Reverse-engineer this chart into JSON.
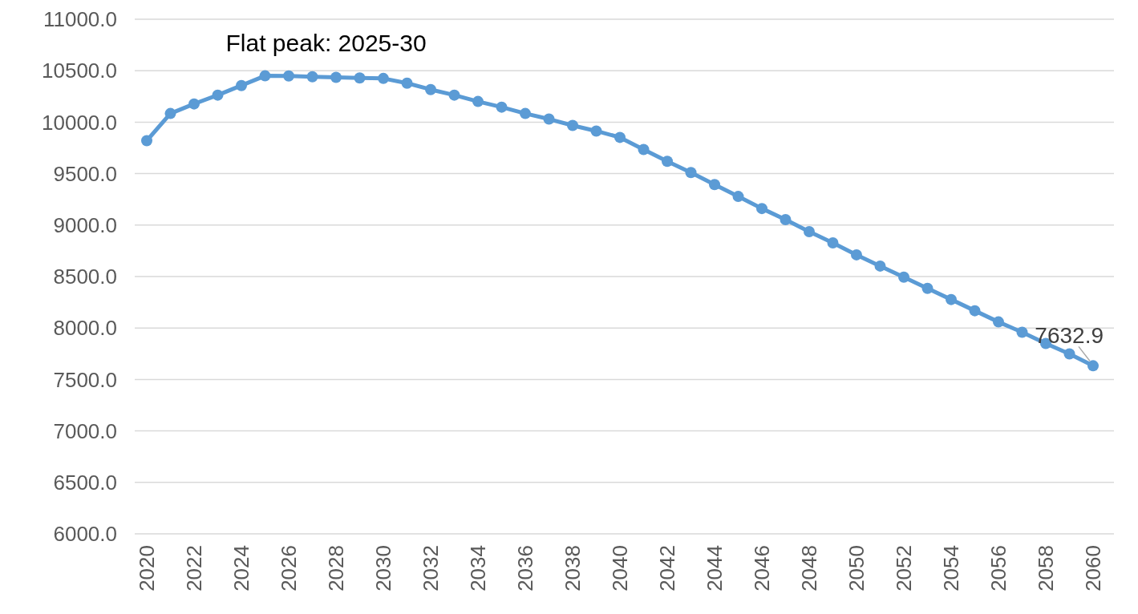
{
  "chart_data": {
    "type": "line",
    "categories": [
      "2020",
      null,
      "2022",
      null,
      "2024",
      null,
      "2026",
      null,
      "2028",
      null,
      "2030",
      null,
      "2032",
      null,
      "2034",
      null,
      "2036",
      null,
      "2038",
      null,
      "2040",
      null,
      "2042",
      null,
      "2044",
      null,
      "2046",
      null,
      "2048",
      null,
      "2050",
      null,
      "2052",
      null,
      "2054",
      null,
      "2056",
      null,
      "2058",
      null,
      "2060"
    ],
    "series": [
      {
        "color": "#5b9bd5",
        "values": [
          9820,
          10084,
          10177,
          10263,
          10356,
          10450,
          10449,
          10441,
          10435,
          10430,
          10425,
          10379,
          10317,
          10263,
          10201,
          10146,
          10084,
          10030,
          9968,
          9914,
          9852,
          9735,
          9619,
          9510,
          9394,
          9278,
          9161,
          9053,
          8936,
          8827,
          8711,
          8602,
          8494,
          8385,
          8277,
          8168,
          8059,
          7959,
          7850,
          7749,
          7632.9
        ],
        "value_labels": [
          null,
          null,
          null,
          null,
          null,
          null,
          null,
          null,
          null,
          null,
          null,
          null,
          null,
          null,
          null,
          null,
          null,
          null,
          null,
          null,
          null,
          null,
          null,
          null,
          null,
          null,
          null,
          null,
          null,
          null,
          null,
          null,
          null,
          null,
          null,
          null,
          null,
          null,
          null,
          null,
          "7632.9"
        ]
      }
    ],
    "ylim": [
      6000,
      11000
    ],
    "yticks": [
      {
        "value": 6000,
        "label": "6000.0"
      },
      {
        "value": 6500,
        "label": "6500.0"
      },
      {
        "value": 7000,
        "label": "7000.0"
      },
      {
        "value": 7500,
        "label": "7500.0"
      },
      {
        "value": 8000,
        "label": "8000.0"
      },
      {
        "value": 8500,
        "label": "8500.0"
      },
      {
        "value": 9000,
        "label": "9000.0"
      },
      {
        "value": 9500,
        "label": "9500.0"
      },
      {
        "value": 10000,
        "label": "10000.0"
      },
      {
        "value": 10500,
        "label": "10500.0"
      },
      {
        "value": 11000,
        "label": "11000.0"
      }
    ],
    "grid": "y",
    "marker": "circle",
    "line_style": "solid",
    "annotations": [
      "Flat peak: 2025-30"
    ]
  }
}
